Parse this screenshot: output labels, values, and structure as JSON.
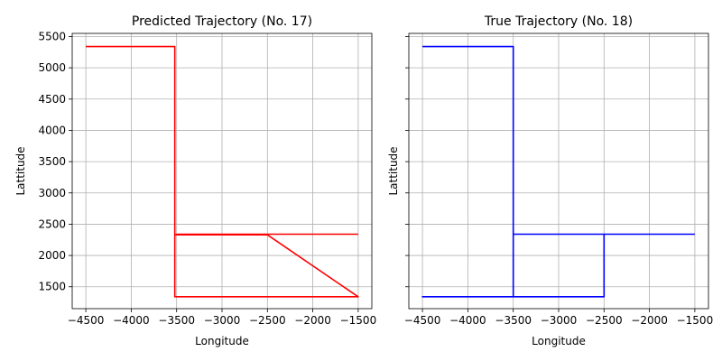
{
  "chart_data": [
    {
      "type": "line",
      "title": "Predicted Trajectory (No. 17)",
      "xlabel": "Longitude",
      "ylabel": "Lattitude",
      "xlim": [
        -4650,
        -1350
      ],
      "ylim": [
        1150,
        5550
      ],
      "xticks": [
        -4500,
        -4000,
        -3500,
        -3000,
        -2500,
        -2000,
        -1500
      ],
      "yticks": [
        1500,
        2000,
        2500,
        3000,
        3500,
        4000,
        4500,
        5000,
        5500
      ],
      "grid": true,
      "color": "#ff0000",
      "series": [
        {
          "x": [
            -4500,
            -3520,
            -3520,
            -3520,
            -2520,
            -2520,
            -1500,
            -1500,
            -2500,
            -3500,
            -3510,
            -3500,
            -3500
          ],
          "y": [
            5340,
            5340,
            5320,
            1340,
            1340,
            1340,
            1340,
            1340,
            2330,
            2330,
            2330,
            2340,
            2340
          ]
        },
        {
          "x": [
            -3500,
            -2500,
            -2500,
            -1500
          ],
          "y": [
            2340,
            2340,
            2340,
            2340
          ]
        }
      ]
    },
    {
      "type": "line",
      "title": "True Trajectory (No. 18)",
      "xlabel": "Longitude",
      "ylabel": "Lattitude",
      "xlim": [
        -4650,
        -1350
      ],
      "ylim": [
        1150,
        5550
      ],
      "xticks": [
        -4500,
        -4000,
        -3500,
        -3000,
        -2500,
        -2000,
        -1500
      ],
      "yticks": [
        1500,
        2000,
        2500,
        3000,
        3500,
        4000,
        4500,
        5000,
        5500
      ],
      "show_ytick_labels": false,
      "grid": true,
      "color": "#0000ff",
      "series": [
        {
          "x": [
            -4500,
            -3500,
            -3500,
            -4500,
            -2500,
            -2500,
            -1500
          ],
          "y": [
            5340,
            5340,
            1340,
            1340,
            1340,
            2340,
            2340
          ]
        },
        {
          "x": [
            -3500,
            -2500
          ],
          "y": [
            2340,
            2340
          ]
        }
      ]
    }
  ]
}
